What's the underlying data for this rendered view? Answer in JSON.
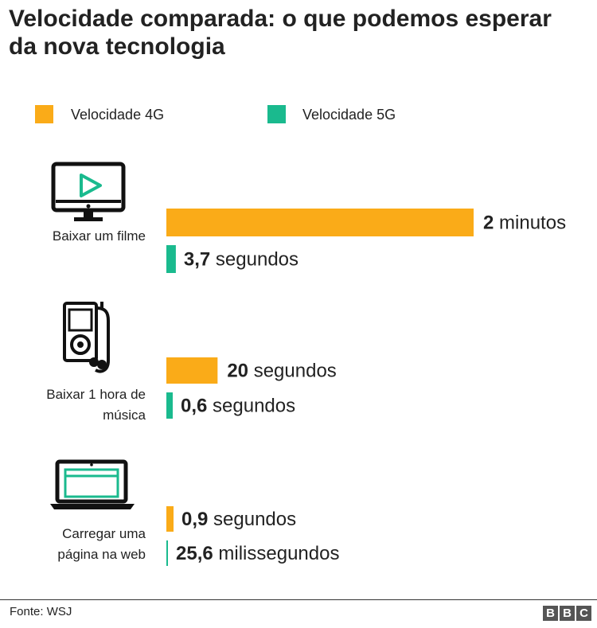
{
  "chart_data": {
    "type": "bar",
    "orientation": "horizontal",
    "title": "Velocidade comparada: o que podemos esperar da nova tecnologia",
    "legend": [
      {
        "name": "Velocidade 4G",
        "color": "#faab18"
      },
      {
        "name": "Velocidade 5G",
        "color": "#1aba8e"
      }
    ],
    "unit": "segundos",
    "categories": [
      {
        "label_lines": [
          "Baixar um filme"
        ],
        "icon": "monitor-play-icon",
        "bars": [
          {
            "series": "Velocidade 4G",
            "value": 120,
            "value_bold": "2",
            "unit_text": "minutos"
          },
          {
            "series": "Velocidade 5G",
            "value": 3.7,
            "value_bold": "3,7",
            "unit_text": "segundos"
          }
        ]
      },
      {
        "label_lines": [
          "Baixar 1 hora de",
          "música"
        ],
        "icon": "music-player-icon",
        "bars": [
          {
            "series": "Velocidade 4G",
            "value": 20,
            "value_bold": "20",
            "unit_text": "segundos"
          },
          {
            "series": "Velocidade 5G",
            "value": 0.6,
            "value_bold": "0,6",
            "unit_text": "segundos"
          }
        ]
      },
      {
        "label_lines": [
          "Carregar uma",
          "página na web"
        ],
        "icon": "laptop-icon",
        "bars": [
          {
            "series": "Velocidade 4G",
            "value": 0.9,
            "value_bold": "0,9",
            "unit_text": "segundos"
          },
          {
            "series": "Velocidade 5G",
            "value": 0.0256,
            "value_bold": "25,6",
            "unit_text": "milissegundos"
          }
        ]
      }
    ],
    "source": "Fonte: WSJ"
  },
  "footer": {
    "source": "Fonte: WSJ",
    "logo_letters": [
      "B",
      "B",
      "C"
    ]
  }
}
